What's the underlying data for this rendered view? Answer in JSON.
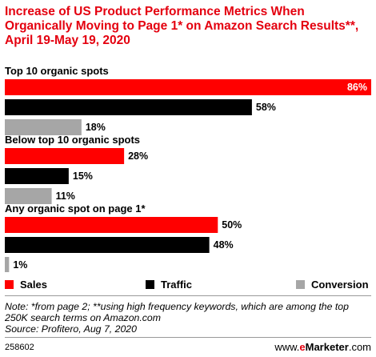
{
  "title": "Increase of US Product Performance Metrics When Organically Moving to Page 1* on Amazon Search Results**, April 19-May 19, 2020",
  "chart_data": {
    "type": "bar",
    "orientation": "horizontal",
    "categories": [
      "Top 10 organic spots",
      "Below top 10 organic spots",
      "Any organic spot on page 1*"
    ],
    "series": [
      {
        "name": "Sales",
        "color": "#ff0000",
        "values": [
          86,
          28,
          50
        ],
        "labels": [
          "86%",
          "28%",
          "50%"
        ]
      },
      {
        "name": "Traffic",
        "color": "#000000",
        "values": [
          58,
          15,
          48
        ],
        "labels": [
          "58%",
          "15%",
          "48%"
        ]
      },
      {
        "name": "Conversion",
        "color": "#a6a6a6",
        "values": [
          18,
          11,
          1
        ],
        "labels": [
          "18%",
          "11%",
          "1%"
        ]
      }
    ],
    "xlim": [
      0,
      86
    ],
    "grid": false,
    "legend_position": "bottom"
  },
  "legend": {
    "sales": "Sales",
    "traffic": "Traffic",
    "conversion": "Conversion"
  },
  "note": "Note: *from page 2; **using high frequency keywords, which are among the top 250K search terms on Amazon.com",
  "source": "Source: Profitero, Aug 7, 2020",
  "footer": {
    "id": "258602",
    "brand_prefix": "www.",
    "brand_e": "e",
    "brand_name": "Marketer",
    "brand_suffix": ".com"
  },
  "colors": {
    "title": "#e4000f",
    "sales": "#ff0000",
    "traffic": "#000000",
    "conversion": "#a6a6a6"
  }
}
